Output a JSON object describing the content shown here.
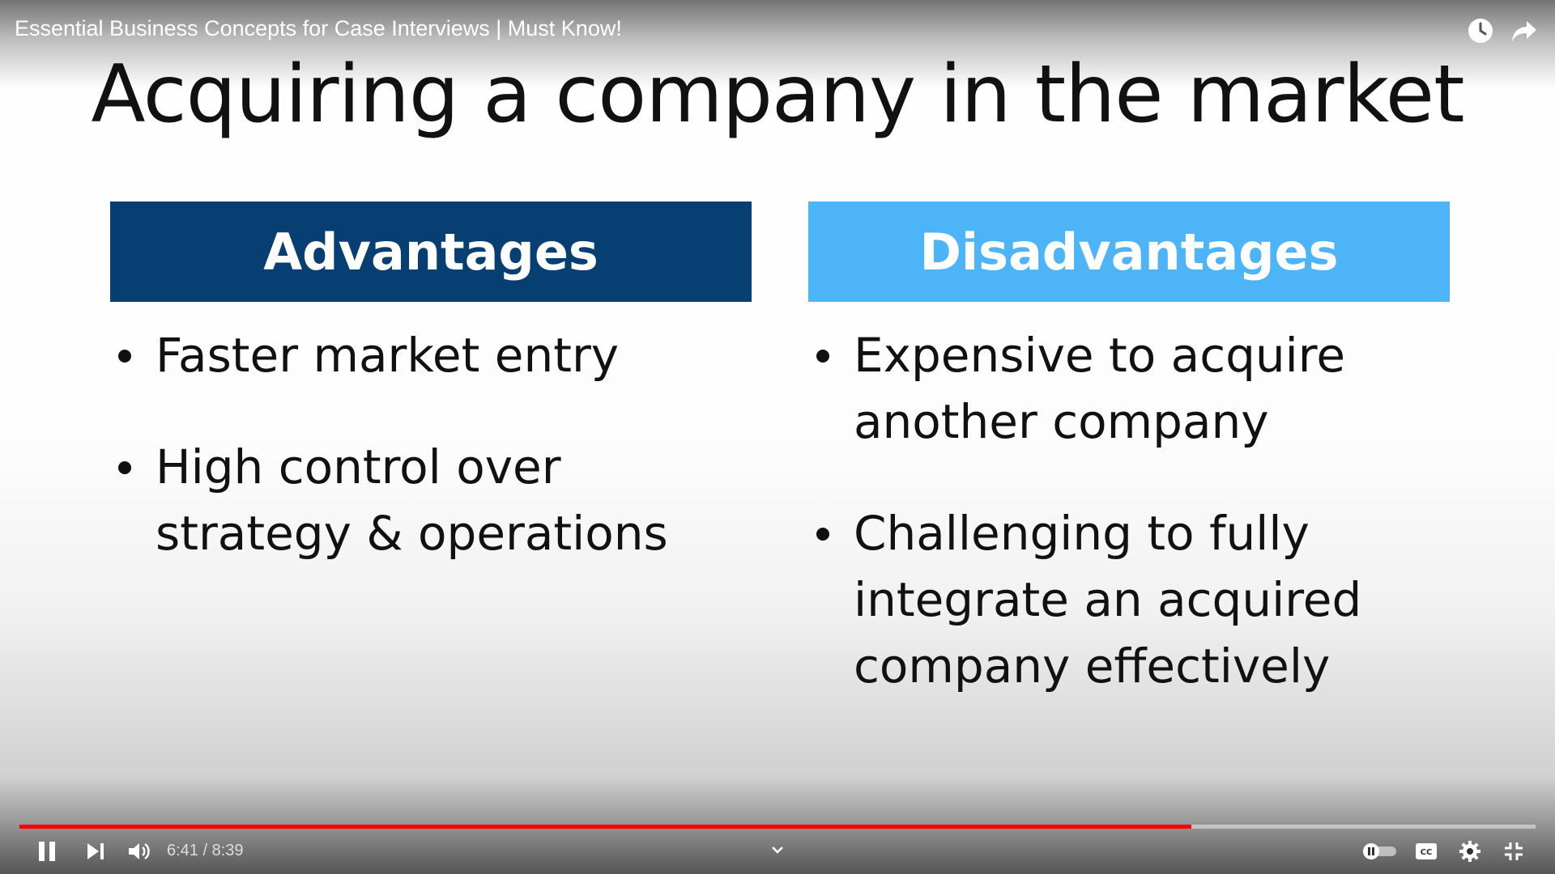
{
  "video": {
    "title": "Essential Business Concepts for Case Interviews | Must Know!"
  },
  "slide": {
    "title": "Acquiring a company in the market",
    "advantages": {
      "header": "Advantages",
      "color": "#073f72",
      "items": [
        "Faster market entry",
        "High control over strategy & operations"
      ]
    },
    "disadvantages": {
      "header": "Disadvantages",
      "color": "#4db4f7",
      "items": [
        "Expensive to acquire another company",
        "Challenging to fully integrate an acquired company effectively"
      ]
    }
  },
  "player": {
    "current_time": "6:41",
    "separator": "/",
    "duration": "8:39",
    "progress_fraction": 0.773,
    "progress_color": "#ff0000",
    "icons": {
      "watch_later": "clock-icon",
      "share": "share-arrow-icon",
      "pause": "pause-icon",
      "next": "next-icon",
      "volume": "volume-icon",
      "chevron": "chevron-down-icon",
      "autoplay": "autoplay-toggle-icon",
      "captions": "cc-icon",
      "settings": "gear-icon",
      "exit_fullscreen": "exit-fullscreen-icon"
    }
  }
}
